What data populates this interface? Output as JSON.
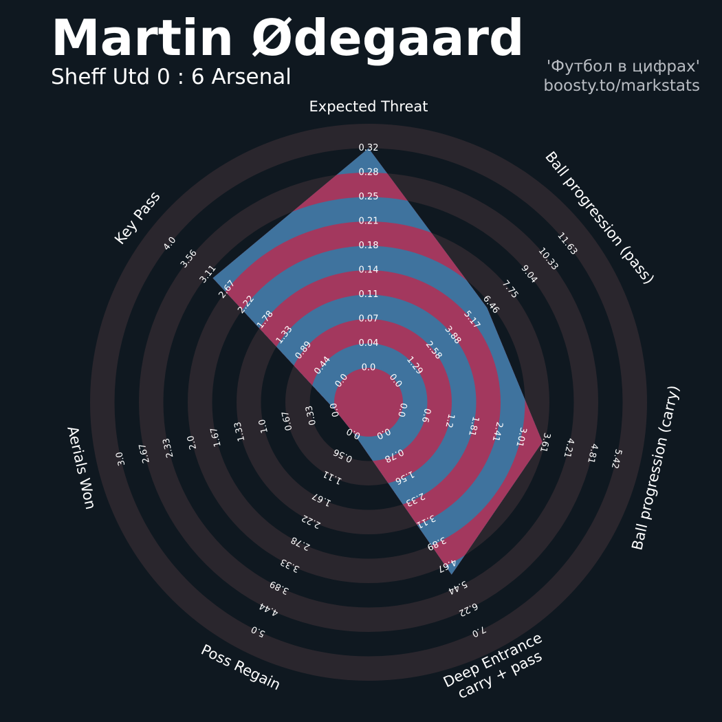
{
  "header": {
    "title": "Martin Ødegaard",
    "subtitle": "Sheff Utd 0 : 6 Arsenal",
    "credit_line1": "'Футбол в цифрах'",
    "credit_line2": "boosty.to/markstats"
  },
  "colors": {
    "background": "#0f1820",
    "ring_dark": "#0f1820",
    "ring_light": "#2a262d",
    "player_ring_a": "#a3385e",
    "player_ring_b": "#3f739e",
    "text": "#ffffff",
    "credit_text": "#b8bcc2"
  },
  "chart_data": {
    "type": "radar",
    "title": "Martin Ødegaard",
    "subtitle": "Sheff Utd 0 : 6 Arsenal",
    "grid": true,
    "params": [
      {
        "label": "Expected Threat",
        "ticks": [
          "0.0",
          "0.04",
          "0.07",
          "0.11",
          "0.14",
          "0.18",
          "0.21",
          "0.25",
          "0.28",
          "0.32"
        ],
        "range": [
          0.0,
          0.32
        ],
        "value": 0.32
      },
      {
        "label": "Ball progression (pass)",
        "ticks": [
          "0.0",
          "1.29",
          "2.58",
          "3.88",
          "5.17",
          "6.46",
          "7.75",
          "9.04",
          "10.33",
          "11.63"
        ],
        "range": [
          0.0,
          11.63
        ],
        "value": 6.2
      },
      {
        "label": "Ball progression (carry)",
        "ticks": [
          "0.0",
          "0.6",
          "1.2",
          "1.81",
          "2.41",
          "3.01",
          "3.61",
          "4.21",
          "4.81",
          "5.42"
        ],
        "range": [
          0.0,
          5.42
        ],
        "value": 3.55
      },
      {
        "label": "Deep Entrance carry + pass",
        "label_lines": [
          "Deep Entrance",
          "carry + pass"
        ],
        "ticks": [
          "0.0",
          "0.78",
          "1.56",
          "2.33",
          "3.11",
          "3.89",
          "4.67",
          "5.44",
          "6.22",
          "7.0"
        ],
        "range": [
          0.0,
          7.0
        ],
        "value": 5.0
      },
      {
        "label": "Poss Regain",
        "ticks": [
          "0.0",
          "0.56",
          "1.11",
          "1.67",
          "2.22",
          "2.78",
          "3.33",
          "3.89",
          "4.44",
          "5.0"
        ],
        "range": [
          0.0,
          5.0
        ],
        "value": 0.0
      },
      {
        "label": "Aerials Won",
        "ticks": [
          "0.0",
          "0.33",
          "0.67",
          "1.0",
          "1.33",
          "1.67",
          "2.0",
          "2.33",
          "2.67",
          "3.0"
        ],
        "range": [
          0.0,
          3.0
        ],
        "value": 0.0
      },
      {
        "label": "Key Pass",
        "ticks": [
          "0.0",
          "0.44",
          "0.89",
          "1.33",
          "1.78",
          "2.22",
          "2.67",
          "3.11",
          "3.56",
          "4.0"
        ],
        "range": [
          0.0,
          4.0
        ],
        "value": 3.0
      }
    ]
  }
}
